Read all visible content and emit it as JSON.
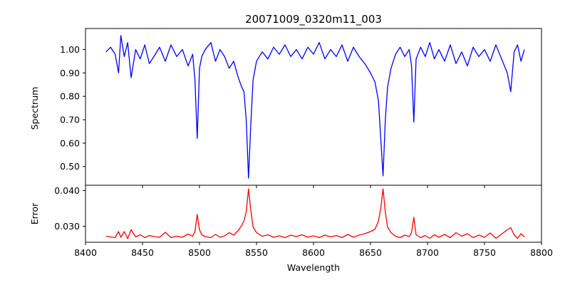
{
  "chart_data": {
    "type": "line",
    "title": "20071009_0320m11_003",
    "xlabel": "Wavelength",
    "xlim": [
      8400,
      8800
    ],
    "xticks": [
      8400,
      8450,
      8500,
      8550,
      8600,
      8650,
      8700,
      8750,
      8800
    ],
    "grid": false,
    "panels": [
      {
        "name": "spectrum",
        "ylabel": "Spectrum",
        "ylim": [
          0.42,
          1.09
        ],
        "yticks": [
          0.5,
          0.6,
          0.7,
          0.8,
          0.9,
          1.0
        ],
        "series": [
          {
            "color": "#0000ff",
            "x": [
              8418,
              8422,
              8426,
              8429,
              8431,
              8434,
              8437,
              8440,
              8444,
              8448,
              8452,
              8456,
              8460,
              8465,
              8470,
              8475,
              8480,
              8485,
              8490,
              8494,
              8496,
              8498,
              8500,
              8502,
              8505,
              8510,
              8514,
              8518,
              8522,
              8526,
              8530,
              8534,
              8537,
              8539,
              8541,
              8543,
              8545,
              8547,
              8550,
              8555,
              8560,
              8565,
              8570,
              8575,
              8580,
              8585,
              8590,
              8595,
              8600,
              8605,
              8610,
              8615,
              8620,
              8625,
              8630,
              8635,
              8640,
              8645,
              8650,
              8654,
              8657,
              8659,
              8661,
              8663,
              8665,
              8668,
              8672,
              8676,
              8680,
              8684,
              8686,
              8688,
              8690,
              8694,
              8698,
              8702,
              8706,
              8710,
              8715,
              8720,
              8725,
              8730,
              8735,
              8740,
              8745,
              8750,
              8755,
              8760,
              8765,
              8770,
              8773,
              8776,
              8779,
              8782,
              8785
            ],
            "values": [
              0.99,
              1.01,
              0.98,
              0.9,
              1.06,
              0.97,
              1.03,
              0.88,
              1.0,
              0.96,
              1.02,
              0.94,
              0.97,
              1.01,
              0.95,
              1.02,
              0.97,
              1.0,
              0.93,
              0.98,
              0.87,
              0.62,
              0.92,
              0.97,
              1.0,
              1.03,
              0.95,
              1.0,
              0.97,
              0.92,
              0.95,
              0.88,
              0.84,
              0.82,
              0.7,
              0.45,
              0.68,
              0.87,
              0.95,
              0.99,
              0.96,
              1.01,
              0.98,
              1.02,
              0.97,
              1.0,
              0.96,
              1.01,
              0.98,
              1.03,
              0.96,
              1.0,
              0.97,
              1.02,
              0.95,
              1.01,
              0.97,
              0.94,
              0.9,
              0.86,
              0.78,
              0.62,
              0.46,
              0.7,
              0.84,
              0.92,
              0.98,
              1.01,
              0.97,
              1.0,
              0.93,
              0.69,
              0.96,
              1.01,
              0.97,
              1.03,
              0.96,
              1.0,
              0.95,
              1.02,
              0.94,
              0.99,
              0.93,
              1.01,
              0.97,
              1.0,
              0.95,
              1.02,
              0.96,
              0.9,
              0.82,
              0.99,
              1.02,
              0.95,
              1.0
            ]
          }
        ]
      },
      {
        "name": "error",
        "ylabel": "Error",
        "ylim": [
          0.0255,
          0.0415
        ],
        "yticks": [
          0.03,
          0.04
        ],
        "series": [
          {
            "color": "#ff0000",
            "x": [
              8418,
              8422,
              8426,
              8429,
              8431,
              8434,
              8437,
              8440,
              8444,
              8448,
              8452,
              8456,
              8460,
              8465,
              8470,
              8475,
              8480,
              8485,
              8490,
              8494,
              8496,
              8498,
              8500,
              8502,
              8505,
              8510,
              8514,
              8518,
              8522,
              8526,
              8530,
              8534,
              8537,
              8539,
              8541,
              8543,
              8545,
              8547,
              8550,
              8555,
              8560,
              8565,
              8570,
              8575,
              8580,
              8585,
              8590,
              8595,
              8600,
              8605,
              8610,
              8615,
              8620,
              8625,
              8630,
              8635,
              8640,
              8645,
              8650,
              8654,
              8657,
              8659,
              8661,
              8663,
              8665,
              8668,
              8672,
              8676,
              8680,
              8684,
              8686,
              8688,
              8690,
              8694,
              8698,
              8702,
              8706,
              8710,
              8715,
              8720,
              8725,
              8730,
              8735,
              8740,
              8745,
              8750,
              8755,
              8760,
              8765,
              8770,
              8773,
              8776,
              8779,
              8782,
              8785
            ],
            "values": [
              0.0272,
              0.027,
              0.0268,
              0.0285,
              0.0269,
              0.0285,
              0.0265,
              0.029,
              0.027,
              0.0276,
              0.0268,
              0.0274,
              0.0271,
              0.0269,
              0.0283,
              0.0268,
              0.0272,
              0.0269,
              0.0278,
              0.0272,
              0.0285,
              0.0333,
              0.029,
              0.0276,
              0.0271,
              0.0268,
              0.0277,
              0.0269,
              0.0273,
              0.0282,
              0.0275,
              0.0288,
              0.0302,
              0.0315,
              0.034,
              0.0405,
              0.0345,
              0.0298,
              0.0282,
              0.0272,
              0.0276,
              0.0269,
              0.0273,
              0.0268,
              0.0275,
              0.0271,
              0.0276,
              0.0269,
              0.0273,
              0.0268,
              0.0275,
              0.027,
              0.0274,
              0.0268,
              0.0277,
              0.0269,
              0.0275,
              0.0279,
              0.0285,
              0.0292,
              0.0315,
              0.035,
              0.0405,
              0.034,
              0.0297,
              0.0282,
              0.0272,
              0.0268,
              0.0275,
              0.0271,
              0.0282,
              0.0325,
              0.0276,
              0.0268,
              0.0274,
              0.0266,
              0.0276,
              0.0269,
              0.0277,
              0.0268,
              0.0282,
              0.0272,
              0.0279,
              0.0268,
              0.0275,
              0.0269,
              0.0281,
              0.0266,
              0.0278,
              0.029,
              0.0296,
              0.0276,
              0.0266,
              0.0279,
              0.027
            ]
          }
        ]
      }
    ]
  }
}
